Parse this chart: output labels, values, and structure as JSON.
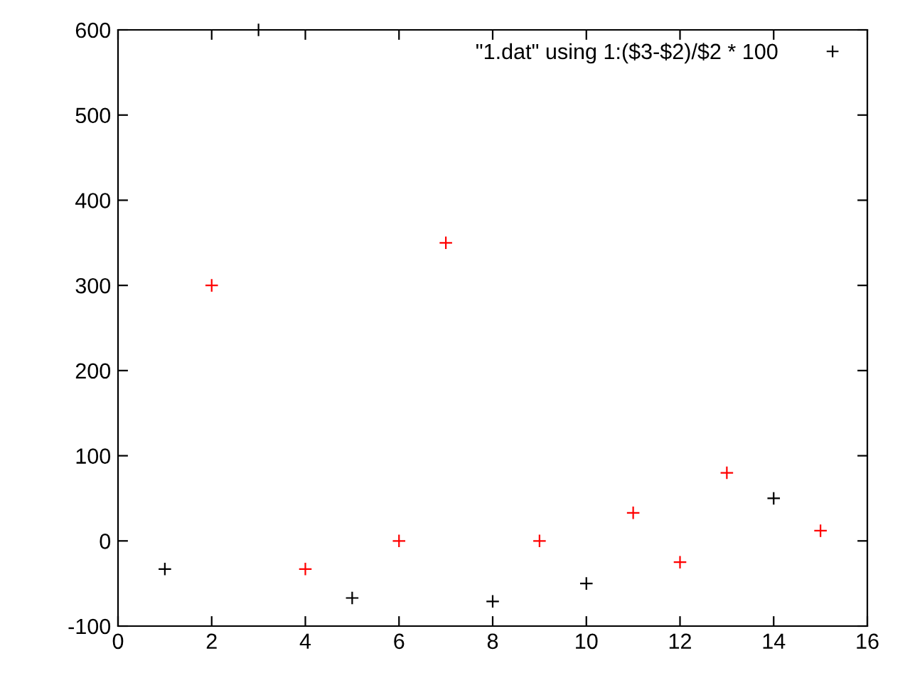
{
  "chart_data": {
    "type": "scatter",
    "x": [
      1,
      2,
      3,
      4,
      5,
      6,
      7,
      8,
      9,
      10,
      11,
      12,
      13,
      14,
      15
    ],
    "series": [
      {
        "name": "\"1.dat\" using 1:($3-$2)/$2 * 100",
        "color": "#000000",
        "colors": [
          "#000000",
          "#ff0000",
          "#000000",
          "#ff0000",
          "#000000",
          "#ff0000",
          "#ff0000",
          "#000000",
          "#ff0000",
          "#000000",
          "#ff0000",
          "#ff0000",
          "#ff0000",
          "#000000",
          "#ff0000"
        ],
        "values": [
          -33,
          300,
          600,
          -33,
          -67,
          0,
          350,
          -71,
          0,
          -50,
          33,
          -25,
          80,
          50,
          12
        ]
      }
    ],
    "xlim": [
      0,
      16
    ],
    "xticks": [
      0,
      2,
      4,
      6,
      8,
      10,
      12,
      14,
      16
    ],
    "ylim": [
      -100,
      600
    ],
    "yticks": [
      -100,
      0,
      100,
      200,
      300,
      400,
      500,
      600
    ],
    "marker": "cross",
    "grid": false,
    "legend": "top right"
  }
}
